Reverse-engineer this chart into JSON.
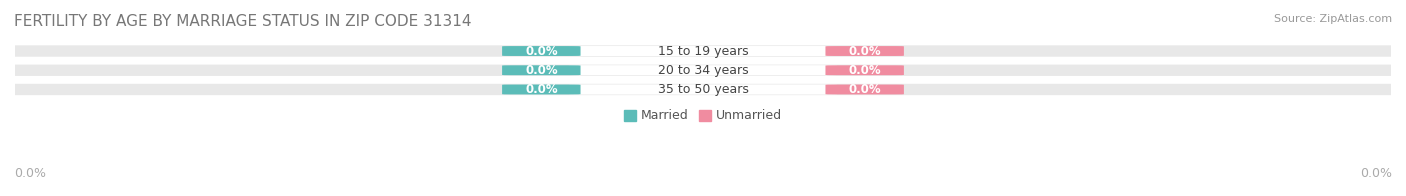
{
  "title": "FERTILITY BY AGE BY MARRIAGE STATUS IN ZIP CODE 31314",
  "source": "Source: ZipAtlas.com",
  "categories": [
    "15 to 19 years",
    "20 to 34 years",
    "35 to 50 years"
  ],
  "married_values": [
    0.0,
    0.0,
    0.0
  ],
  "unmarried_values": [
    0.0,
    0.0,
    0.0
  ],
  "married_color": "#5bbcb8",
  "unmarried_color": "#f08ca0",
  "bar_bg_color": "#e8e8e8",
  "center_label_bg": "#ffffff",
  "xlim": [
    -1,
    1
  ],
  "bar_height": 0.55,
  "title_fontsize": 11,
  "label_fontsize": 9,
  "value_fontsize": 8.5,
  "legend_fontsize": 9,
  "source_fontsize": 8,
  "bg_color": "#ffffff",
  "axis_label_left": "0.0%",
  "axis_label_right": "0.0%"
}
